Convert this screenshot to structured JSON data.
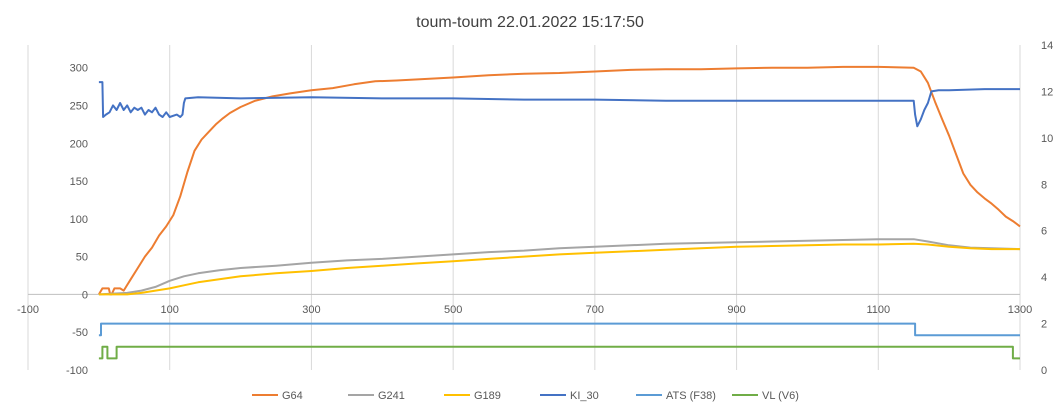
{
  "chart_data": {
    "type": "line",
    "title": "toum-toum 22.01.2022 15:17:50",
    "xlabel": "",
    "ylabel": "",
    "x_ticks": [
      "-100",
      "100",
      "300",
      "500",
      "700",
      "900",
      "1100",
      "1300"
    ],
    "xlim": [
      -100,
      1300
    ],
    "y_left_ticks": [
      "-100",
      "-50",
      "0",
      "50",
      "100",
      "150",
      "200",
      "250",
      "300"
    ],
    "y_left_lim": [
      -100,
      330
    ],
    "y_right_ticks": [
      "0",
      "2",
      "4",
      "6",
      "8",
      "10",
      "12",
      "14"
    ],
    "y_right_lim": [
      0,
      14
    ],
    "grid": "vertical",
    "legend_position": "bottom",
    "series": [
      {
        "name": "G64",
        "color": "#ed7d31",
        "axis": "left",
        "step": false,
        "points": [
          [
            0,
            0
          ],
          [
            5,
            8
          ],
          [
            14,
            8
          ],
          [
            16,
            0
          ],
          [
            18,
            0
          ],
          [
            22,
            8
          ],
          [
            30,
            8
          ],
          [
            35,
            5
          ],
          [
            45,
            20
          ],
          [
            55,
            35
          ],
          [
            65,
            50
          ],
          [
            75,
            62
          ],
          [
            85,
            78
          ],
          [
            95,
            90
          ],
          [
            105,
            105
          ],
          [
            115,
            130
          ],
          [
            125,
            162
          ],
          [
            135,
            190
          ],
          [
            145,
            205
          ],
          [
            155,
            215
          ],
          [
            165,
            225
          ],
          [
            175,
            233
          ],
          [
            185,
            240
          ],
          [
            200,
            248
          ],
          [
            220,
            256
          ],
          [
            245,
            262
          ],
          [
            270,
            266
          ],
          [
            300,
            270
          ],
          [
            330,
            273
          ],
          [
            360,
            278
          ],
          [
            390,
            282
          ],
          [
            420,
            283
          ],
          [
            460,
            285
          ],
          [
            500,
            287
          ],
          [
            550,
            290
          ],
          [
            600,
            292
          ],
          [
            650,
            293
          ],
          [
            700,
            295
          ],
          [
            750,
            297
          ],
          [
            800,
            298
          ],
          [
            850,
            298
          ],
          [
            900,
            299
          ],
          [
            950,
            300
          ],
          [
            1000,
            300
          ],
          [
            1050,
            301
          ],
          [
            1100,
            301
          ],
          [
            1150,
            300
          ],
          [
            1160,
            295
          ],
          [
            1170,
            280
          ],
          [
            1180,
            255
          ],
          [
            1190,
            232
          ],
          [
            1200,
            210
          ],
          [
            1210,
            185
          ],
          [
            1220,
            160
          ],
          [
            1230,
            145
          ],
          [
            1240,
            135
          ],
          [
            1250,
            127
          ],
          [
            1260,
            120
          ],
          [
            1270,
            112
          ],
          [
            1280,
            103
          ],
          [
            1290,
            97
          ],
          [
            1300,
            90
          ]
        ]
      },
      {
        "name": "G241",
        "color": "#a5a5a5",
        "axis": "left",
        "step": false,
        "points": [
          [
            0,
            0
          ],
          [
            40,
            2
          ],
          [
            60,
            5
          ],
          [
            80,
            10
          ],
          [
            100,
            18
          ],
          [
            120,
            24
          ],
          [
            140,
            28
          ],
          [
            170,
            32
          ],
          [
            200,
            35
          ],
          [
            250,
            38
          ],
          [
            300,
            42
          ],
          [
            350,
            45
          ],
          [
            400,
            47
          ],
          [
            450,
            50
          ],
          [
            500,
            53
          ],
          [
            550,
            56
          ],
          [
            600,
            58
          ],
          [
            650,
            61
          ],
          [
            700,
            63
          ],
          [
            750,
            65
          ],
          [
            800,
            67
          ],
          [
            850,
            68
          ],
          [
            900,
            69
          ],
          [
            950,
            70
          ],
          [
            1000,
            71
          ],
          [
            1050,
            72
          ],
          [
            1100,
            73
          ],
          [
            1150,
            73
          ],
          [
            1170,
            70
          ],
          [
            1200,
            65
          ],
          [
            1230,
            62
          ],
          [
            1260,
            61
          ],
          [
            1300,
            60
          ]
        ]
      },
      {
        "name": "G189",
        "color": "#ffc000",
        "axis": "left",
        "step": false,
        "points": [
          [
            0,
            0
          ],
          [
            40,
            0
          ],
          [
            60,
            2
          ],
          [
            80,
            5
          ],
          [
            100,
            8
          ],
          [
            120,
            12
          ],
          [
            140,
            16
          ],
          [
            170,
            20
          ],
          [
            200,
            24
          ],
          [
            250,
            28
          ],
          [
            300,
            31
          ],
          [
            350,
            35
          ],
          [
            400,
            38
          ],
          [
            450,
            41
          ],
          [
            500,
            44
          ],
          [
            550,
            47
          ],
          [
            600,
            50
          ],
          [
            650,
            53
          ],
          [
            700,
            55
          ],
          [
            750,
            57
          ],
          [
            800,
            59
          ],
          [
            850,
            61
          ],
          [
            900,
            63
          ],
          [
            950,
            64
          ],
          [
            1000,
            65
          ],
          [
            1050,
            66
          ],
          [
            1100,
            66
          ],
          [
            1150,
            67
          ],
          [
            1170,
            66
          ],
          [
            1200,
            63
          ],
          [
            1230,
            61
          ],
          [
            1260,
            60
          ],
          [
            1300,
            60
          ]
        ]
      },
      {
        "name": "KI_30",
        "color": "#4472c4",
        "axis": "right",
        "step": false,
        "points": [
          [
            0,
            12.4
          ],
          [
            5,
            12.4
          ],
          [
            6,
            10.9
          ],
          [
            10,
            11
          ],
          [
            15,
            11.1
          ],
          [
            20,
            11.4
          ],
          [
            25,
            11.2
          ],
          [
            30,
            11.5
          ],
          [
            35,
            11.2
          ],
          [
            40,
            11.4
          ],
          [
            45,
            11.1
          ],
          [
            50,
            11.3
          ],
          [
            55,
            11.2
          ],
          [
            60,
            11.3
          ],
          [
            65,
            11.0
          ],
          [
            70,
            11.2
          ],
          [
            75,
            11.1
          ],
          [
            80,
            11.3
          ],
          [
            85,
            11.0
          ],
          [
            90,
            10.9
          ],
          [
            95,
            11.1
          ],
          [
            100,
            10.9
          ],
          [
            110,
            11.0
          ],
          [
            115,
            10.9
          ],
          [
            118,
            11.0
          ],
          [
            120,
            11.5
          ],
          [
            122,
            11.7
          ],
          [
            140,
            11.75
          ],
          [
            200,
            11.7
          ],
          [
            300,
            11.75
          ],
          [
            400,
            11.7
          ],
          [
            500,
            11.7
          ],
          [
            600,
            11.65
          ],
          [
            700,
            11.65
          ],
          [
            800,
            11.6
          ],
          [
            900,
            11.6
          ],
          [
            1000,
            11.6
          ],
          [
            1100,
            11.6
          ],
          [
            1150,
            11.6
          ],
          [
            1152,
            11.0
          ],
          [
            1155,
            10.5
          ],
          [
            1160,
            10.8
          ],
          [
            1165,
            11.2
          ],
          [
            1170,
            11.5
          ],
          [
            1175,
            12.0
          ],
          [
            1185,
            12.05
          ],
          [
            1200,
            12.05
          ],
          [
            1250,
            12.1
          ],
          [
            1300,
            12.1
          ]
        ]
      },
      {
        "name": "ATS (F38)",
        "color": "#5b9bd5",
        "axis": "right",
        "step": true,
        "points": [
          [
            0,
            1.5
          ],
          [
            3,
            2
          ],
          [
            1150,
            2
          ],
          [
            1152,
            1.5
          ],
          [
            1300,
            1.5
          ]
        ]
      },
      {
        "name": "VL (V6)",
        "color": "#70ad47",
        "axis": "right",
        "step": true,
        "points": [
          [
            0,
            0.5
          ],
          [
            5,
            1.0
          ],
          [
            10,
            1.0
          ],
          [
            12,
            0.5
          ],
          [
            22,
            0.5
          ],
          [
            25,
            1.0
          ],
          [
            1287,
            1.0
          ],
          [
            1290,
            0.5
          ],
          [
            1300,
            0.5
          ]
        ]
      }
    ]
  }
}
